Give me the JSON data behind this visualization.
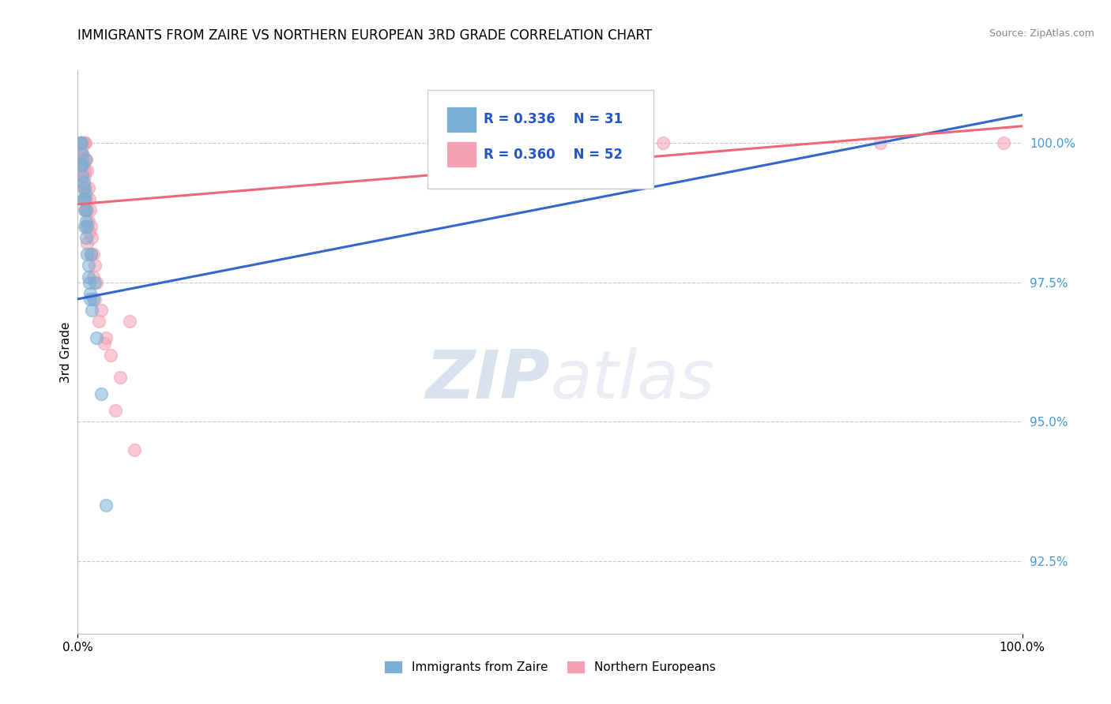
{
  "title": "IMMIGRANTS FROM ZAIRE VS NORTHERN EUROPEAN 3RD GRADE CORRELATION CHART",
  "source": "Source: ZipAtlas.com",
  "ylabel": "3rd Grade",
  "xlim": [
    0.0,
    100.0
  ],
  "ylim": [
    91.2,
    101.3
  ],
  "yticks": [
    92.5,
    95.0,
    97.5,
    100.0
  ],
  "xtick_labels": [
    "0.0%",
    "100.0%"
  ],
  "ytick_labels": [
    "92.5%",
    "95.0%",
    "97.5%",
    "100.0%"
  ],
  "blue_label": "Immigrants from Zaire",
  "pink_label": "Northern Europeans",
  "blue_R": 0.336,
  "blue_N": 31,
  "pink_R": 0.36,
  "pink_N": 52,
  "blue_color": "#7BAFD4",
  "pink_color": "#F4A0B0",
  "blue_line_color": "#3366CC",
  "pink_line_color": "#EE6677",
  "blue_x": [
    0.3,
    0.4,
    0.4,
    0.5,
    0.5,
    0.6,
    0.6,
    0.7,
    0.7,
    0.8,
    0.8,
    0.9,
    0.9,
    1.0,
    1.0,
    1.1,
    1.2,
    1.3,
    1.4,
    1.5,
    1.6,
    1.8,
    2.0,
    2.5,
    3.0,
    0.5,
    0.6,
    0.7,
    0.9,
    1.1,
    1.3
  ],
  "blue_y": [
    100.0,
    100.0,
    99.6,
    99.8,
    99.4,
    99.2,
    99.0,
    98.8,
    98.5,
    99.7,
    99.1,
    98.6,
    98.3,
    98.5,
    98.0,
    97.8,
    97.5,
    97.3,
    98.0,
    97.0,
    97.2,
    97.5,
    96.5,
    95.5,
    93.5,
    99.6,
    99.3,
    99.0,
    98.8,
    97.6,
    97.2
  ],
  "pink_x": [
    0.2,
    0.3,
    0.3,
    0.4,
    0.4,
    0.5,
    0.5,
    0.6,
    0.6,
    0.7,
    0.7,
    0.8,
    0.8,
    0.9,
    0.9,
    1.0,
    1.0,
    1.1,
    1.2,
    1.3,
    1.4,
    1.5,
    1.6,
    1.8,
    2.0,
    2.5,
    3.0,
    3.5,
    4.5,
    5.5,
    0.4,
    0.5,
    0.6,
    0.7,
    0.8,
    0.9,
    1.0,
    1.1,
    1.2,
    1.4,
    1.6,
    1.8,
    2.2,
    2.8,
    4.0,
    6.0,
    62.0,
    85.0,
    98.0,
    0.3,
    0.5,
    0.7
  ],
  "pink_y": [
    100.0,
    100.0,
    99.8,
    100.0,
    99.6,
    100.0,
    99.4,
    100.0,
    99.2,
    100.0,
    99.0,
    100.0,
    98.8,
    99.7,
    98.5,
    99.5,
    98.2,
    99.2,
    99.0,
    98.8,
    98.5,
    98.3,
    98.0,
    97.8,
    97.5,
    97.0,
    96.5,
    96.2,
    95.8,
    96.8,
    100.0,
    99.8,
    99.6,
    99.4,
    99.2,
    99.0,
    98.8,
    98.6,
    98.4,
    98.0,
    97.6,
    97.2,
    96.8,
    96.4,
    95.2,
    94.5,
    100.0,
    100.0,
    100.0,
    99.9,
    99.7,
    99.5
  ],
  "blue_line_x0": 0,
  "blue_line_y0": 97.2,
  "blue_line_x1": 100,
  "blue_line_y1": 100.5,
  "pink_line_x0": 0,
  "pink_line_y0": 98.9,
  "pink_line_x1": 100,
  "pink_line_y1": 100.3
}
